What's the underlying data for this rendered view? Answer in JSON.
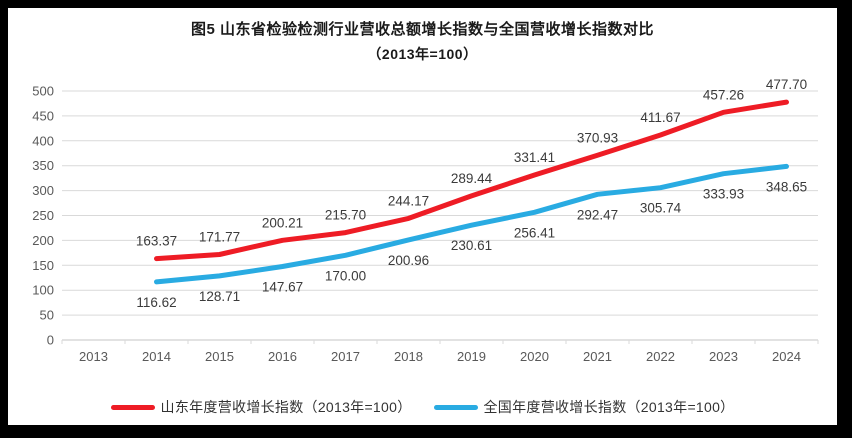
{
  "title": {
    "line1": "图5  山东省检验检测行业营收总额增长指数与全国营收增长指数对比",
    "line2": "（2013年=100）"
  },
  "chart_data": {
    "type": "line",
    "categories": [
      "2013",
      "2014",
      "2015",
      "2016",
      "2017",
      "2018",
      "2019",
      "2020",
      "2021",
      "2022",
      "2023",
      "2024"
    ],
    "series": [
      {
        "name": "山东年度营收增长指数（2013年=100）",
        "color": "#ee1c25",
        "label_position": "above",
        "values": [
          null,
          163.37,
          171.77,
          200.21,
          215.7,
          244.17,
          289.44,
          331.41,
          370.93,
          411.67,
          457.26,
          477.7
        ]
      },
      {
        "name": "全国年度营收增长指数（2013年=100）",
        "color": "#29abe2",
        "label_position": "below",
        "values": [
          null,
          116.62,
          128.71,
          147.67,
          170.0,
          200.96,
          230.61,
          256.41,
          292.47,
          305.74,
          333.93,
          348.65
        ]
      }
    ],
    "ylim": [
      0,
      500
    ],
    "ytick_step": 50,
    "yticks": [
      0,
      50,
      100,
      150,
      200,
      250,
      300,
      350,
      400,
      450,
      500
    ],
    "grid": "horizontal",
    "grid_color": "#d9d9d9",
    "axis_text_color": "#595959",
    "data_label_color": "#3b3b3b",
    "legend_position": "bottom",
    "data_label_decimals": 2
  }
}
